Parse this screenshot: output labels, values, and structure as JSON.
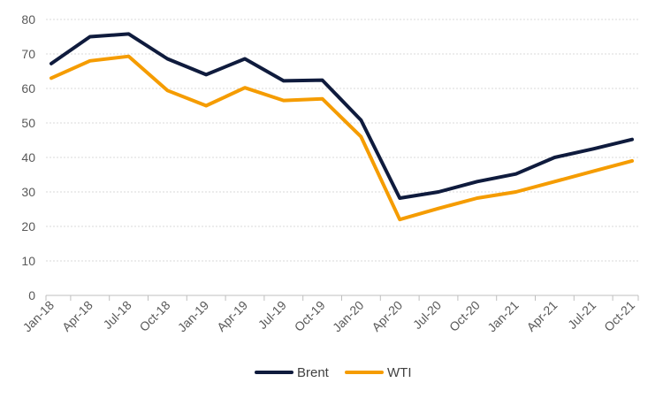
{
  "chart_data": {
    "type": "line",
    "categories": [
      "Jan-18",
      "Apr-18",
      "Jul-18",
      "Oct-18",
      "Jan-19",
      "Apr-19",
      "Jul-19",
      "Oct-19",
      "Jan-20",
      "Apr-20",
      "Jul-20",
      "Oct-20",
      "Jan-21",
      "Apr-21",
      "Jul-21",
      "Oct-21"
    ],
    "series": [
      {
        "name": "Brent",
        "color": "#0f1b3d",
        "values": [
          67.2,
          75,
          75.8,
          68.6,
          64,
          68.6,
          62.2,
          62.4,
          50.8,
          28.2,
          30,
          33,
          35.2,
          40,
          42.5,
          45.2
        ]
      },
      {
        "name": "WTI",
        "color": "#f59c00",
        "values": [
          63,
          68,
          69.3,
          59.4,
          55,
          60.2,
          56.5,
          57,
          46,
          22,
          25.2,
          28.2,
          30,
          33,
          36,
          39
        ]
      }
    ],
    "ylim": [
      0,
      80
    ],
    "yticks": [
      0,
      10,
      20,
      30,
      40,
      50,
      60,
      70,
      80
    ],
    "grid": true,
    "legend": "bottom-center",
    "title": "",
    "xlabel": "",
    "ylabel": ""
  }
}
